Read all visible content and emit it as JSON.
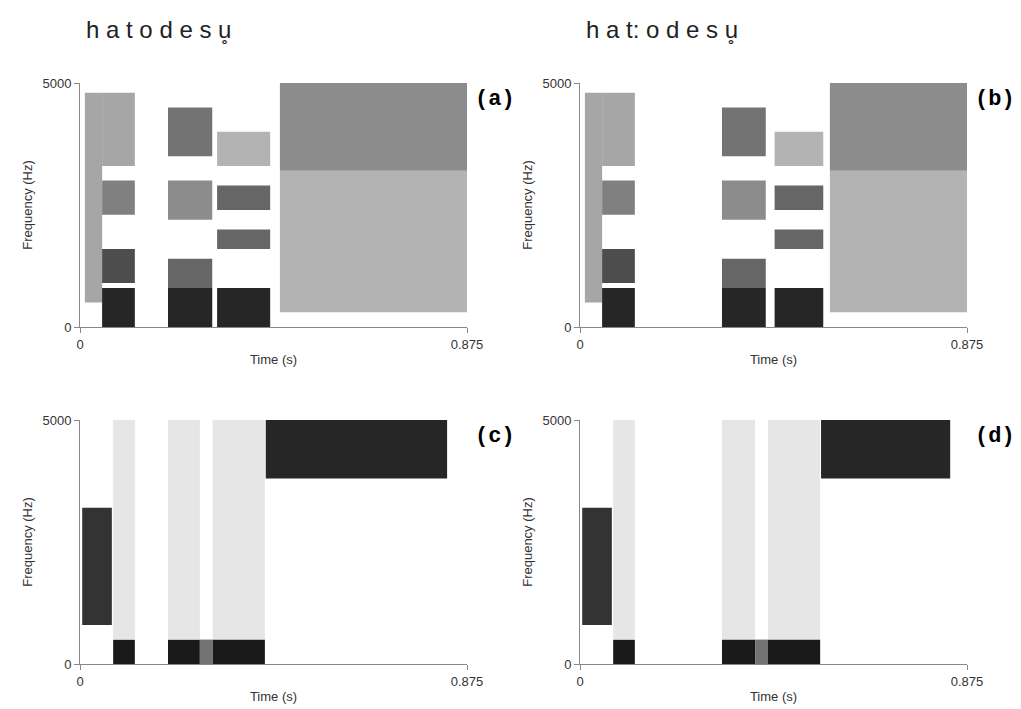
{
  "chart_data": [
    {
      "type": "spectrogram",
      "title": "(a)",
      "annotations": [
        "h a t o d e s u̥"
      ],
      "x_label": "Time (s)",
      "y_label": "Frequency (Hz)",
      "color": "#000000",
      "xlim": [
        0,
        0.875
      ],
      "xticks": [
        0,
        0.875
      ],
      "ylim": [
        0,
        5000
      ],
      "yticks": [
        0,
        5000
      ],
      "bands": [
        {
          "time": [
            0.011,
            0.05
          ],
          "frequency": [
            500,
            4800
          ],
          "intensity": 0.35
        },
        {
          "time": [
            0.05,
            0.124
          ],
          "frequency": [
            0,
            800
          ],
          "intensity": 0.85
        },
        {
          "time": [
            0.05,
            0.124
          ],
          "frequency": [
            900,
            1600
          ],
          "intensity": 0.7
        },
        {
          "time": [
            0.05,
            0.124
          ],
          "frequency": [
            2300,
            3000
          ],
          "intensity": 0.5
        },
        {
          "time": [
            0.05,
            0.124
          ],
          "frequency": [
            3300,
            4800
          ],
          "intensity": 0.35
        },
        {
          "time": [
            0.199,
            0.299
          ],
          "frequency": [
            0,
            800
          ],
          "intensity": 0.85
        },
        {
          "time": [
            0.199,
            0.299
          ],
          "frequency": [
            800,
            1400
          ],
          "intensity": 0.6
        },
        {
          "time": [
            0.199,
            0.299
          ],
          "frequency": [
            2200,
            3000
          ],
          "intensity": 0.45
        },
        {
          "time": [
            0.199,
            0.299
          ],
          "frequency": [
            3500,
            4500
          ],
          "intensity": 0.55
        },
        {
          "time": [
            0.31,
            0.43
          ],
          "frequency": [
            0,
            800
          ],
          "intensity": 0.85
        },
        {
          "time": [
            0.31,
            0.43
          ],
          "frequency": [
            1600,
            2000
          ],
          "intensity": 0.6
        },
        {
          "time": [
            0.31,
            0.43
          ],
          "frequency": [
            2400,
            2900
          ],
          "intensity": 0.6
        },
        {
          "time": [
            0.31,
            0.43
          ],
          "frequency": [
            3300,
            4000
          ],
          "intensity": 0.3
        },
        {
          "time": [
            0.452,
            0.875
          ],
          "frequency": [
            300,
            3200
          ],
          "intensity": 0.3
        },
        {
          "time": [
            0.452,
            0.875
          ],
          "frequency": [
            3200,
            5000
          ],
          "intensity": 0.45
        }
      ]
    },
    {
      "type": "spectrogram",
      "title": "(b)",
      "annotations": [
        "h a t: o d e s u̥"
      ],
      "x_label": "Time (s)",
      "y_label": "Frequency (Hz)",
      "color": "#000000",
      "xlim": [
        0,
        0.875
      ],
      "xticks": [
        0,
        0.875
      ],
      "ylim": [
        0,
        5000
      ],
      "yticks": [
        0,
        5000
      ],
      "bands": [
        {
          "time": [
            0.011,
            0.05
          ],
          "frequency": [
            500,
            4800
          ],
          "intensity": 0.35
        },
        {
          "time": [
            0.05,
            0.124
          ],
          "frequency": [
            0,
            800
          ],
          "intensity": 0.85
        },
        {
          "time": [
            0.05,
            0.124
          ],
          "frequency": [
            900,
            1600
          ],
          "intensity": 0.7
        },
        {
          "time": [
            0.05,
            0.124
          ],
          "frequency": [
            2300,
            3000
          ],
          "intensity": 0.5
        },
        {
          "time": [
            0.05,
            0.124
          ],
          "frequency": [
            3300,
            4800
          ],
          "intensity": 0.35
        },
        {
          "time": [
            0.321,
            0.42
          ],
          "frequency": [
            0,
            800
          ],
          "intensity": 0.85
        },
        {
          "time": [
            0.321,
            0.42
          ],
          "frequency": [
            800,
            1400
          ],
          "intensity": 0.6
        },
        {
          "time": [
            0.321,
            0.42
          ],
          "frequency": [
            2200,
            3000
          ],
          "intensity": 0.45
        },
        {
          "time": [
            0.321,
            0.42
          ],
          "frequency": [
            3500,
            4500
          ],
          "intensity": 0.55
        },
        {
          "time": [
            0.44,
            0.55
          ],
          "frequency": [
            0,
            800
          ],
          "intensity": 0.85
        },
        {
          "time": [
            0.44,
            0.55
          ],
          "frequency": [
            1600,
            2000
          ],
          "intensity": 0.6
        },
        {
          "time": [
            0.44,
            0.55
          ],
          "frequency": [
            2400,
            2900
          ],
          "intensity": 0.6
        },
        {
          "time": [
            0.44,
            0.55
          ],
          "frequency": [
            3300,
            4000
          ],
          "intensity": 0.3
        },
        {
          "time": [
            0.565,
            0.875
          ],
          "frequency": [
            300,
            3200
          ],
          "intensity": 0.3
        },
        {
          "time": [
            0.565,
            0.875
          ],
          "frequency": [
            3200,
            5000
          ],
          "intensity": 0.45
        }
      ]
    },
    {
      "type": "spectrogram",
      "title": "(c)",
      "x_label": "Time (s)",
      "y_label": "Frequency (Hz)",
      "color": "#000000",
      "xlim": [
        0,
        0.875
      ],
      "xticks": [
        0,
        0.875
      ],
      "ylim": [
        0,
        5000
      ],
      "yticks": [
        0,
        5000
      ],
      "bands": [
        {
          "time": [
            0.005,
            0.072
          ],
          "frequency": [
            800,
            3200
          ],
          "intensity": 0.8
        },
        {
          "time": [
            0.075,
            0.124
          ],
          "frequency": [
            0,
            500
          ],
          "intensity": 0.9
        },
        {
          "time": [
            0.075,
            0.124
          ],
          "frequency": [
            500,
            5000
          ],
          "intensity": 0.1
        },
        {
          "time": [
            0.199,
            0.271
          ],
          "frequency": [
            0,
            500
          ],
          "intensity": 0.9
        },
        {
          "time": [
            0.199,
            0.271
          ],
          "frequency": [
            500,
            5000
          ],
          "intensity": 0.1
        },
        {
          "time": [
            0.271,
            0.3
          ],
          "frequency": [
            0,
            500
          ],
          "intensity": 0.55
        },
        {
          "time": [
            0.3,
            0.418
          ],
          "frequency": [
            0,
            500
          ],
          "intensity": 0.9
        },
        {
          "time": [
            0.3,
            0.418
          ],
          "frequency": [
            500,
            5000
          ],
          "intensity": 0.1
        },
        {
          "time": [
            0.42,
            0.83
          ],
          "frequency": [
            3800,
            5000
          ],
          "intensity": 0.85
        }
      ]
    },
    {
      "type": "spectrogram",
      "title": "(d)",
      "x_label": "Time (s)",
      "y_label": "Frequency (Hz)",
      "color": "#000000",
      "xlim": [
        0,
        0.875
      ],
      "xticks": [
        0,
        0.875
      ],
      "ylim": [
        0,
        5000
      ],
      "yticks": [
        0,
        5000
      ],
      "bands": [
        {
          "time": [
            0.005,
            0.072
          ],
          "frequency": [
            800,
            3200
          ],
          "intensity": 0.8
        },
        {
          "time": [
            0.075,
            0.124
          ],
          "frequency": [
            0,
            500
          ],
          "intensity": 0.9
        },
        {
          "time": [
            0.075,
            0.124
          ],
          "frequency": [
            500,
            5000
          ],
          "intensity": 0.1
        },
        {
          "time": [
            0.321,
            0.396
          ],
          "frequency": [
            0,
            500
          ],
          "intensity": 0.9
        },
        {
          "time": [
            0.321,
            0.396
          ],
          "frequency": [
            500,
            5000
          ],
          "intensity": 0.1
        },
        {
          "time": [
            0.396,
            0.425
          ],
          "frequency": [
            0,
            500
          ],
          "intensity": 0.55
        },
        {
          "time": [
            0.425,
            0.543
          ],
          "frequency": [
            0,
            500
          ],
          "intensity": 0.9
        },
        {
          "time": [
            0.425,
            0.543
          ],
          "frequency": [
            500,
            5000
          ],
          "intensity": 0.1
        },
        {
          "time": [
            0.545,
            0.837
          ],
          "frequency": [
            3800,
            5000
          ],
          "intensity": 0.85
        }
      ]
    }
  ]
}
